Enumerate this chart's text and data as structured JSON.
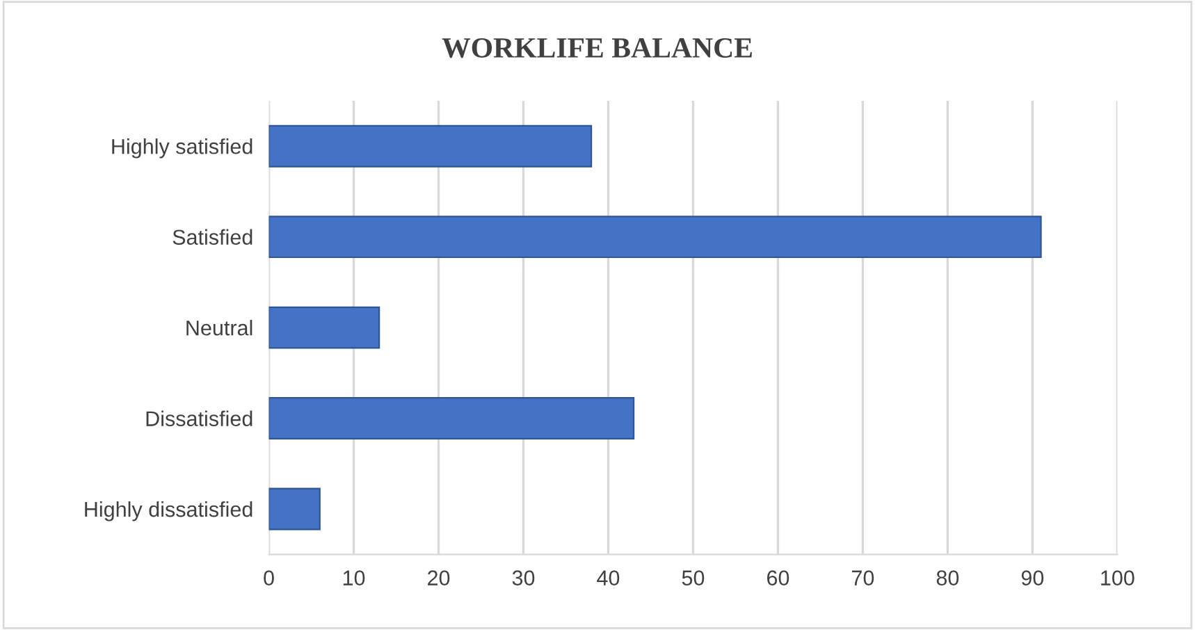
{
  "chart_data": {
    "type": "bar",
    "orientation": "horizontal",
    "title": "WORKLIFE BALANCE",
    "categories": [
      "Highly satisfied",
      "Satisfied",
      "Neutral",
      "Dissatisfied",
      "Highly dissatisfied"
    ],
    "values": [
      38,
      91,
      13,
      43,
      6
    ],
    "color": "#4472c4",
    "xlim": [
      0,
      100
    ],
    "xticks": [
      0,
      10,
      20,
      30,
      40,
      50,
      60,
      70,
      80,
      90,
      100
    ],
    "grid": "x"
  }
}
